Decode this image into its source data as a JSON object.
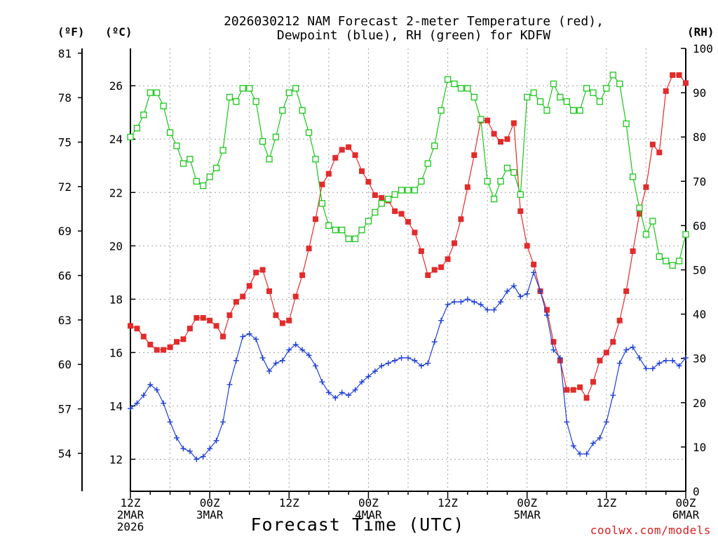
{
  "header": {
    "title_line1": "2026030212 NAM Forecast 2-meter Temperature (red),",
    "title_line2": "Dewpoint (blue), RH (green) for KDFW",
    "unit_f": "(ºF)",
    "unit_c": "(ºC)",
    "unit_rh": "(RH)"
  },
  "footer": {
    "xlabel": "Forecast Time (UTC)",
    "credit": "coolwx.com/models"
  },
  "colors": {
    "temperature": "#e22b2b",
    "dewpoint": "#1f3fd8",
    "rh": "#19c619",
    "grid": "#a0a0a0"
  },
  "chart_data": {
    "type": "line",
    "title": "2026030212 NAM Forecast 2-meter Temperature (red), Dewpoint (blue), RH (green) for KDFW",
    "xlabel": "Forecast Time (UTC)",
    "x_unit": "forecast hour",
    "xlim": [
      0,
      84
    ],
    "ylim_celsius": [
      10.8,
      27.4
    ],
    "ylim_rh": [
      0,
      100
    ],
    "left_axis_f_ticks": [
      "81",
      "78",
      "75",
      "72",
      "69",
      "66",
      "63",
      "60",
      "57",
      "54"
    ],
    "left_axis_c_ticks": [
      "26",
      "24",
      "22",
      "20",
      "18",
      "16",
      "14",
      "12"
    ],
    "right_axis_rh_ticks": [
      "100",
      "90",
      "80",
      "70",
      "60",
      "50",
      "40",
      "30",
      "20",
      "10",
      "0"
    ],
    "x_ticks": [
      {
        "x": 0,
        "lines": [
          "12Z",
          "2MAR",
          "2026"
        ]
      },
      {
        "x": 12,
        "lines": [
          "00Z",
          "3MAR"
        ]
      },
      {
        "x": 24,
        "lines": [
          "12Z"
        ]
      },
      {
        "x": 36,
        "lines": [
          "00Z",
          "4MAR"
        ]
      },
      {
        "x": 48,
        "lines": [
          "12Z"
        ]
      },
      {
        "x": 60,
        "lines": [
          "00Z",
          "5MAR"
        ]
      },
      {
        "x": 72,
        "lines": [
          "12Z"
        ]
      },
      {
        "x": 84,
        "lines": [
          "00Z",
          "6MAR"
        ]
      }
    ],
    "x": [
      0,
      1,
      2,
      3,
      4,
      5,
      6,
      7,
      8,
      9,
      10,
      11,
      12,
      13,
      14,
      15,
      16,
      17,
      18,
      19,
      20,
      21,
      22,
      23,
      24,
      25,
      26,
      27,
      28,
      29,
      30,
      31,
      32,
      33,
      34,
      35,
      36,
      37,
      38,
      39,
      40,
      41,
      42,
      43,
      44,
      45,
      46,
      47,
      48,
      49,
      50,
      51,
      52,
      53,
      54,
      55,
      56,
      57,
      58,
      59,
      60,
      61,
      62,
      63,
      64,
      65,
      66,
      67,
      68,
      69,
      70,
      71,
      72,
      73,
      74,
      75,
      76,
      77,
      78,
      79,
      80,
      81,
      82,
      83,
      84
    ],
    "series": [
      {
        "name": "2-meter Temperature",
        "unit": "C",
        "color": "#e22b2b",
        "marker": "filled-square",
        "axis": "celsius",
        "values": [
          17.0,
          16.9,
          16.6,
          16.3,
          16.1,
          16.1,
          16.2,
          16.4,
          16.5,
          16.9,
          17.3,
          17.3,
          17.2,
          17.0,
          16.6,
          17.4,
          17.9,
          18.1,
          18.5,
          19.0,
          19.1,
          18.3,
          17.4,
          17.1,
          17.2,
          18.1,
          18.9,
          19.9,
          21.0,
          22.3,
          22.7,
          23.3,
          23.6,
          23.7,
          23.4,
          22.8,
          22.4,
          21.9,
          21.8,
          21.7,
          21.3,
          21.2,
          20.9,
          20.5,
          19.8,
          18.9,
          19.1,
          19.2,
          19.5,
          20.1,
          21.0,
          22.2,
          23.4,
          24.7,
          24.7,
          24.2,
          23.9,
          24.0,
          24.6,
          21.3,
          20.0,
          19.3,
          18.3,
          17.6,
          16.4,
          15.7,
          14.6,
          14.6,
          14.7,
          14.3,
          14.9,
          15.7,
          16.0,
          16.4,
          17.2,
          18.3,
          19.8,
          21.2,
          22.2,
          23.8,
          23.5,
          25.8,
          26.4,
          26.4,
          26.1
        ]
      },
      {
        "name": "Dewpoint",
        "unit": "C",
        "color": "#1f3fd8",
        "marker": "plus",
        "axis": "celsius",
        "values": [
          13.9,
          14.1,
          14.4,
          14.8,
          14.6,
          14.1,
          13.4,
          12.8,
          12.4,
          12.3,
          12.0,
          12.1,
          12.4,
          12.7,
          13.4,
          14.8,
          15.7,
          16.6,
          16.7,
          16.5,
          15.8,
          15.3,
          15.6,
          15.7,
          16.1,
          16.3,
          16.1,
          15.9,
          15.5,
          14.9,
          14.5,
          14.3,
          14.5,
          14.4,
          14.6,
          14.9,
          15.1,
          15.3,
          15.5,
          15.6,
          15.7,
          15.8,
          15.8,
          15.7,
          15.5,
          15.6,
          16.4,
          17.2,
          17.8,
          17.9,
          17.9,
          18.0,
          17.9,
          17.8,
          17.6,
          17.6,
          17.9,
          18.3,
          18.5,
          18.1,
          18.2,
          19.0,
          18.3,
          17.4,
          16.1,
          15.8,
          13.4,
          12.5,
          12.2,
          12.2,
          12.6,
          12.8,
          13.4,
          14.4,
          15.6,
          16.1,
          16.2,
          15.8,
          15.4,
          15.4,
          15.6,
          15.7,
          15.7,
          15.5,
          15.8
        ]
      },
      {
        "name": "Relative Humidity",
        "unit": "%",
        "color": "#19c619",
        "marker": "open-square",
        "axis": "rh",
        "values": [
          80,
          82,
          85,
          90,
          90,
          87,
          81,
          78,
          74,
          75,
          70,
          69,
          71,
          73,
          77,
          89,
          88,
          91,
          91,
          88,
          79,
          75,
          80,
          86,
          90,
          91,
          86,
          81,
          75,
          65,
          60,
          59,
          59,
          57,
          57,
          59,
          61,
          63,
          65,
          66,
          67,
          68,
          68,
          68,
          70,
          74,
          78,
          86,
          93,
          92,
          91,
          91,
          89,
          84,
          70,
          66,
          70,
          73,
          72,
          67,
          89,
          90,
          88,
          86,
          92,
          89,
          88,
          86,
          86,
          91,
          90,
          88,
          91,
          94,
          92,
          83,
          71,
          64,
          58,
          61,
          53,
          52,
          51,
          52,
          58
        ]
      }
    ]
  }
}
